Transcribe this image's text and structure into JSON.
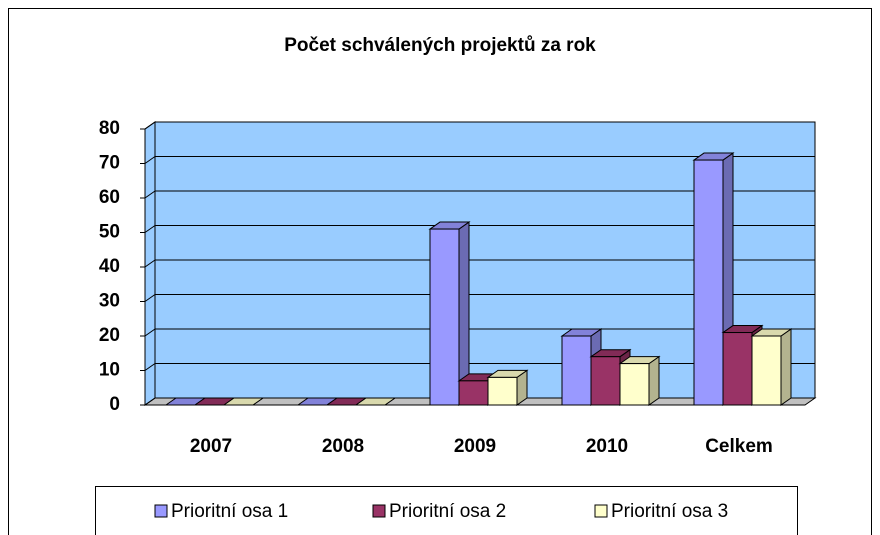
{
  "chart_data": {
    "type": "bar",
    "title": "Počet schválených projektů za rok",
    "categories": [
      "2007",
      "2008",
      "2009",
      "2010",
      "Celkem"
    ],
    "series": [
      {
        "name": "Prioritní osa 1",
        "color": "#9999ff",
        "values": [
          0,
          0,
          51,
          20,
          71
        ]
      },
      {
        "name": "Prioritní osa 2",
        "color": "#993366",
        "values": [
          0,
          0,
          7,
          14,
          21
        ]
      },
      {
        "name": "Prioritní osa 3",
        "color": "#ffffcc",
        "values": [
          0,
          0,
          8,
          12,
          20
        ]
      }
    ],
    "ylim": [
      0,
      80
    ],
    "yticks": [
      0,
      10,
      20,
      30,
      40,
      50,
      60,
      70,
      80
    ],
    "grid": true,
    "wall_color": "#99ccff",
    "legend": "bottom"
  }
}
